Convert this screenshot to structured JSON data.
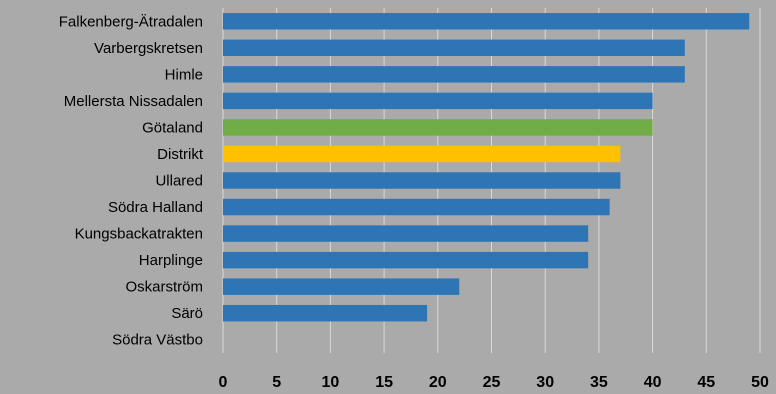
{
  "chart_data": {
    "type": "bar",
    "orientation": "horizontal",
    "categories": [
      "Falkenberg-Ätradalen",
      "Varbergskretsen",
      "Himle",
      "Mellersta Nissadalen",
      "Götaland",
      "Distrikt",
      "Ullared",
      "Södra Halland",
      "Kungsbackatrakten",
      "Harplinge",
      "Oskarström",
      "Särö",
      "Södra Västbo"
    ],
    "values": [
      49,
      43,
      43,
      40,
      40,
      37,
      37,
      36,
      34,
      34,
      22,
      19,
      0
    ],
    "colors": [
      "#2e75b6",
      "#2e75b6",
      "#2e75b6",
      "#2e75b6",
      "#70ad47",
      "#ffc000",
      "#2e75b6",
      "#2e75b6",
      "#2e75b6",
      "#2e75b6",
      "#2e75b6",
      "#2e75b6",
      "#2e75b6"
    ],
    "xlim": [
      0,
      50
    ],
    "ticks": [
      "0",
      "5",
      "10",
      "15",
      "20",
      "25",
      "30",
      "35",
      "40",
      "45",
      "50"
    ],
    "grid": true,
    "legend": "none",
    "title": "",
    "xlabel": "",
    "ylabel": ""
  }
}
